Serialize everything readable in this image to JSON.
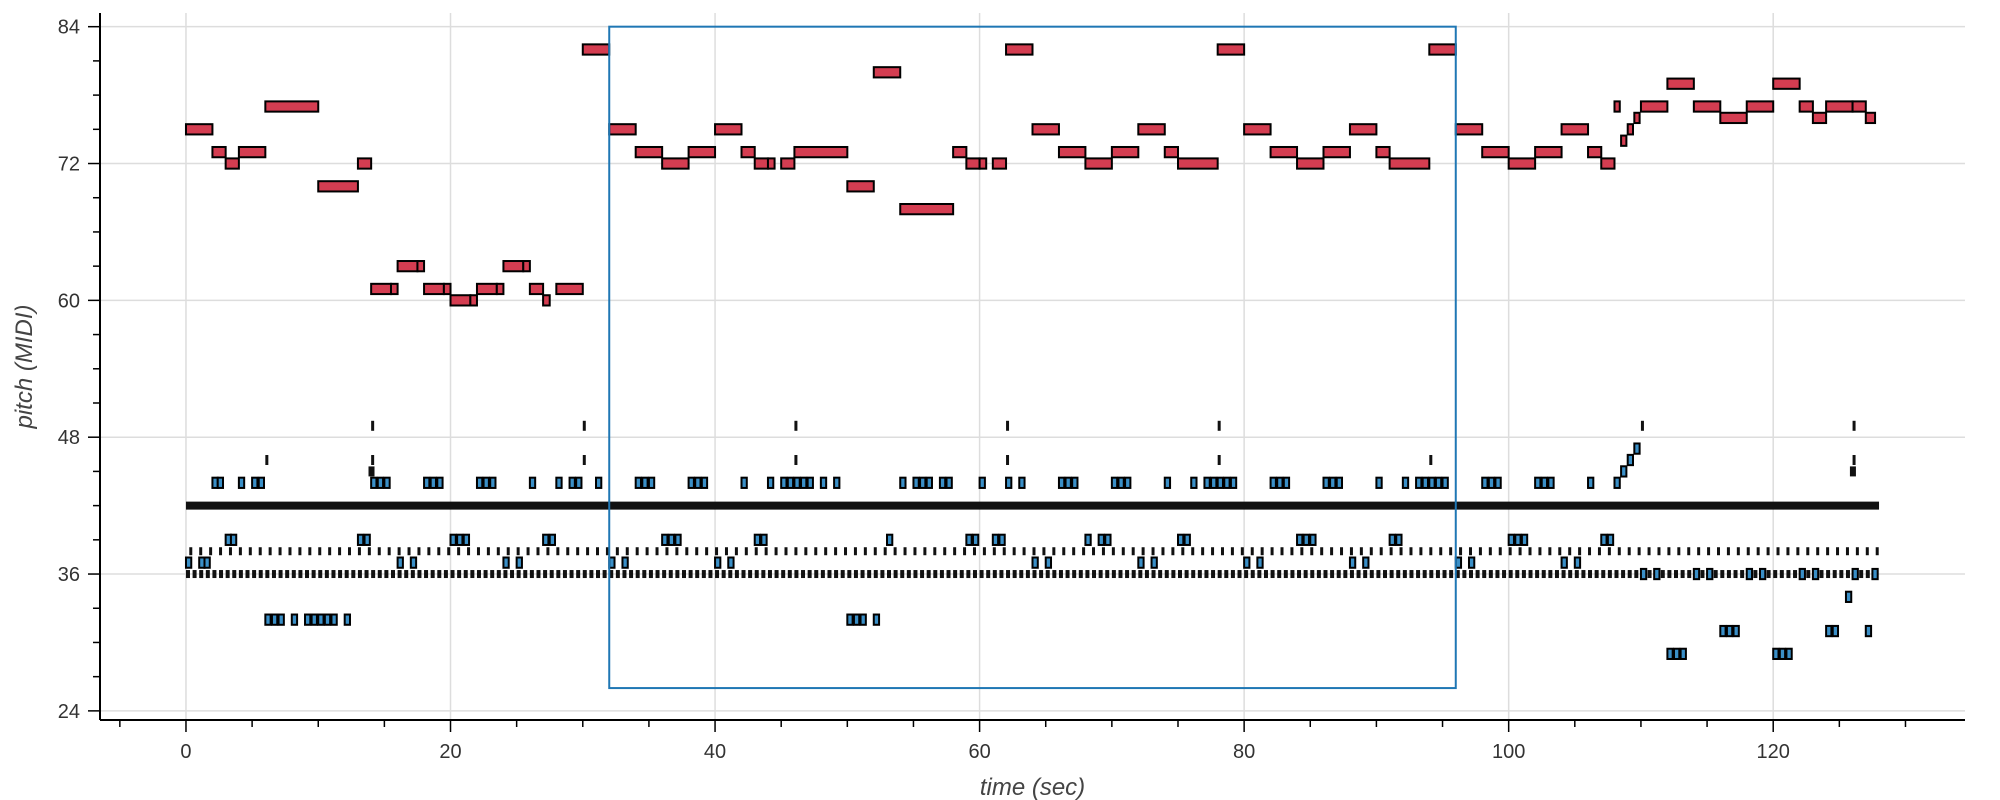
{
  "chart_data": {
    "type": "scatter",
    "xlabel": "time (sec)",
    "ylabel": "pitch (MIDI)",
    "xlim": [
      -6.5,
      134.5
    ],
    "ylim": [
      23.2,
      85.2
    ],
    "x_ticks": [
      0,
      20,
      40,
      60,
      80,
      100,
      120
    ],
    "y_ticks": [
      24,
      36,
      48,
      60,
      72,
      84
    ],
    "grid": true,
    "highlight_region": {
      "x": [
        32,
        96
      ],
      "y": [
        26,
        84
      ],
      "color": "#1f77b4"
    },
    "colors": {
      "melody": "#d43d51",
      "accompaniment": "#3a8fc7",
      "percussion": "#111111",
      "outline": "#000000"
    },
    "series": [
      {
        "color": "#d43d51",
        "notes": [
          [
            0,
            2,
            75
          ],
          [
            2,
            1,
            73
          ],
          [
            3,
            1,
            72
          ],
          [
            4,
            2,
            73
          ],
          [
            6,
            4,
            77
          ],
          [
            10,
            3,
            70
          ],
          [
            13,
            1,
            72
          ],
          [
            14,
            1.5,
            61
          ],
          [
            15.5,
            0.5,
            61
          ],
          [
            16,
            1.5,
            63
          ],
          [
            17.5,
            0.5,
            63
          ],
          [
            18,
            1.5,
            61
          ],
          [
            19.5,
            0.5,
            61
          ],
          [
            20,
            1.5,
            60
          ],
          [
            21.5,
            0.5,
            60
          ],
          [
            22,
            1.5,
            61
          ],
          [
            23.5,
            0.5,
            61
          ],
          [
            24,
            1.5,
            63
          ],
          [
            25.5,
            0.5,
            63
          ],
          [
            26,
            1,
            61
          ],
          [
            27,
            0.5,
            60
          ],
          [
            28,
            2,
            61
          ],
          [
            30,
            2,
            82
          ],
          [
            32,
            2,
            75
          ],
          [
            34,
            2,
            73
          ],
          [
            36,
            2,
            72
          ],
          [
            38,
            2,
            73
          ],
          [
            40,
            2,
            75
          ],
          [
            42,
            1,
            73
          ],
          [
            43,
            1,
            72
          ],
          [
            44,
            0.5,
            72
          ],
          [
            45,
            1,
            72
          ],
          [
            46,
            4,
            73
          ],
          [
            50,
            2,
            70
          ],
          [
            52,
            2,
            80
          ],
          [
            54,
            4,
            68
          ],
          [
            58,
            1,
            73
          ],
          [
            59,
            1,
            72
          ],
          [
            60,
            0.5,
            72
          ],
          [
            61,
            1,
            72
          ],
          [
            62,
            2,
            82
          ],
          [
            64,
            2,
            75
          ],
          [
            66,
            2,
            73
          ],
          [
            68,
            2,
            72
          ],
          [
            70,
            2,
            73
          ],
          [
            72,
            2,
            75
          ],
          [
            74,
            1,
            73
          ],
          [
            75,
            3,
            72
          ],
          [
            78,
            2,
            82
          ],
          [
            80,
            2,
            75
          ],
          [
            82,
            2,
            73
          ],
          [
            84,
            2,
            72
          ],
          [
            86,
            2,
            73
          ],
          [
            88,
            2,
            75
          ],
          [
            90,
            1,
            73
          ],
          [
            91,
            3,
            72
          ],
          [
            94,
            2,
            82
          ],
          [
            96,
            2,
            75
          ],
          [
            98,
            2,
            73
          ],
          [
            100,
            2,
            72
          ],
          [
            102,
            2,
            73
          ],
          [
            104,
            2,
            75
          ],
          [
            106,
            1,
            73
          ],
          [
            107,
            1,
            72
          ],
          [
            108,
            0.4,
            77
          ],
          [
            108.5,
            0.4,
            74
          ],
          [
            109,
            0.4,
            75
          ],
          [
            109.5,
            0.4,
            76
          ],
          [
            110,
            2,
            77
          ],
          [
            112,
            2,
            79
          ],
          [
            114,
            2,
            77
          ],
          [
            116,
            2,
            76
          ],
          [
            118,
            2,
            77
          ],
          [
            120,
            2,
            79
          ],
          [
            122,
            1,
            77
          ],
          [
            123,
            1,
            76
          ],
          [
            124,
            2,
            77
          ],
          [
            126,
            1,
            77
          ],
          [
            127,
            0.7,
            76
          ]
        ]
      },
      {
        "color": "#3a8fc7",
        "notes": [
          [
            0,
            0.4,
            37
          ],
          [
            1,
            0.4,
            37
          ],
          [
            1.4,
            0.4,
            37
          ],
          [
            2,
            0.4,
            44
          ],
          [
            2.4,
            0.4,
            44
          ],
          [
            3,
            0.4,
            39
          ],
          [
            3.4,
            0.4,
            39
          ],
          [
            4,
            0.4,
            44
          ],
          [
            5,
            0.4,
            44
          ],
          [
            5.5,
            0.4,
            44
          ],
          [
            6,
            0.4,
            32
          ],
          [
            6.5,
            0.4,
            32
          ],
          [
            7,
            0.4,
            32
          ],
          [
            8,
            0.4,
            32
          ],
          [
            9,
            0.4,
            32
          ],
          [
            9.5,
            0.4,
            32
          ],
          [
            10,
            0.4,
            32
          ],
          [
            10.5,
            0.4,
            32
          ],
          [
            11,
            0.4,
            32
          ],
          [
            12,
            0.4,
            32
          ],
          [
            13,
            0.4,
            39
          ],
          [
            13.5,
            0.4,
            39
          ],
          [
            14,
            0.4,
            44
          ],
          [
            14.5,
            0.4,
            44
          ],
          [
            15,
            0.4,
            44
          ],
          [
            16,
            0.4,
            37
          ],
          [
            17,
            0.4,
            37
          ],
          [
            18,
            0.4,
            44
          ],
          [
            18.5,
            0.4,
            44
          ],
          [
            19,
            0.4,
            44
          ],
          [
            20,
            0.4,
            39
          ],
          [
            20.5,
            0.4,
            39
          ],
          [
            21,
            0.4,
            39
          ],
          [
            22,
            0.4,
            44
          ],
          [
            22.5,
            0.4,
            44
          ],
          [
            23,
            0.4,
            44
          ],
          [
            24,
            0.4,
            37
          ],
          [
            25,
            0.4,
            37
          ],
          [
            26,
            0.4,
            44
          ],
          [
            27,
            0.4,
            39
          ],
          [
            27.5,
            0.4,
            39
          ],
          [
            28,
            0.4,
            44
          ],
          [
            29,
            0.4,
            44
          ],
          [
            29.5,
            0.4,
            44
          ],
          [
            31,
            0.4,
            44
          ],
          [
            32,
            0.4,
            37
          ],
          [
            33,
            0.4,
            37
          ],
          [
            34,
            0.4,
            44
          ],
          [
            34.5,
            0.4,
            44
          ],
          [
            35,
            0.4,
            44
          ],
          [
            36,
            0.4,
            39
          ],
          [
            36.5,
            0.4,
            39
          ],
          [
            37,
            0.4,
            39
          ],
          [
            38,
            0.4,
            44
          ],
          [
            38.5,
            0.4,
            44
          ],
          [
            39,
            0.4,
            44
          ],
          [
            40,
            0.4,
            37
          ],
          [
            41,
            0.4,
            37
          ],
          [
            42,
            0.4,
            44
          ],
          [
            43,
            0.4,
            39
          ],
          [
            43.5,
            0.4,
            39
          ],
          [
            44,
            0.4,
            44
          ],
          [
            45,
            0.4,
            44
          ],
          [
            45.5,
            0.4,
            44
          ],
          [
            46,
            0.4,
            44
          ],
          [
            46.5,
            0.4,
            44
          ],
          [
            47,
            0.4,
            44
          ],
          [
            48,
            0.4,
            44
          ],
          [
            49,
            0.4,
            44
          ],
          [
            50,
            0.4,
            32
          ],
          [
            50.5,
            0.4,
            32
          ],
          [
            51,
            0.4,
            32
          ],
          [
            52,
            0.4,
            32
          ],
          [
            53,
            0.4,
            39
          ],
          [
            54,
            0.4,
            44
          ],
          [
            55,
            0.4,
            44
          ],
          [
            55.5,
            0.4,
            44
          ],
          [
            56,
            0.4,
            44
          ],
          [
            57,
            0.4,
            44
          ],
          [
            57.5,
            0.4,
            44
          ],
          [
            59,
            0.4,
            39
          ],
          [
            59.5,
            0.4,
            39
          ],
          [
            60,
            0.4,
            44
          ],
          [
            61,
            0.4,
            39
          ],
          [
            61.5,
            0.4,
            39
          ],
          [
            62,
            0.4,
            44
          ],
          [
            63,
            0.4,
            44
          ],
          [
            64,
            0.4,
            37
          ],
          [
            65,
            0.4,
            37
          ],
          [
            66,
            0.4,
            44
          ],
          [
            66.5,
            0.4,
            44
          ],
          [
            67,
            0.4,
            44
          ],
          [
            68,
            0.4,
            39
          ],
          [
            69,
            0.4,
            39
          ],
          [
            69.5,
            0.4,
            39
          ],
          [
            70,
            0.4,
            44
          ],
          [
            70.5,
            0.4,
            44
          ],
          [
            71,
            0.4,
            44
          ],
          [
            72,
            0.4,
            37
          ],
          [
            73,
            0.4,
            37
          ],
          [
            74,
            0.4,
            44
          ],
          [
            75,
            0.4,
            39
          ],
          [
            75.5,
            0.4,
            39
          ],
          [
            76,
            0.4,
            44
          ],
          [
            77,
            0.4,
            44
          ],
          [
            77.5,
            0.4,
            44
          ],
          [
            78,
            0.4,
            44
          ],
          [
            78.5,
            0.4,
            44
          ],
          [
            79,
            0.4,
            44
          ],
          [
            80,
            0.4,
            37
          ],
          [
            81,
            0.4,
            37
          ],
          [
            82,
            0.4,
            44
          ],
          [
            82.5,
            0.4,
            44
          ],
          [
            83,
            0.4,
            44
          ],
          [
            84,
            0.4,
            39
          ],
          [
            84.5,
            0.4,
            39
          ],
          [
            85,
            0.4,
            39
          ],
          [
            86,
            0.4,
            44
          ],
          [
            86.5,
            0.4,
            44
          ],
          [
            87,
            0.4,
            44
          ],
          [
            88,
            0.4,
            37
          ],
          [
            89,
            0.4,
            37
          ],
          [
            90,
            0.4,
            44
          ],
          [
            91,
            0.4,
            39
          ],
          [
            91.5,
            0.4,
            39
          ],
          [
            92,
            0.4,
            44
          ],
          [
            93,
            0.4,
            44
          ],
          [
            93.5,
            0.4,
            44
          ],
          [
            94,
            0.4,
            44
          ],
          [
            94.5,
            0.4,
            44
          ],
          [
            95,
            0.4,
            44
          ],
          [
            96,
            0.4,
            37
          ],
          [
            97,
            0.4,
            37
          ],
          [
            98,
            0.4,
            44
          ],
          [
            98.5,
            0.4,
            44
          ],
          [
            99,
            0.4,
            44
          ],
          [
            100,
            0.4,
            39
          ],
          [
            100.5,
            0.4,
            39
          ],
          [
            101,
            0.4,
            39
          ],
          [
            102,
            0.4,
            44
          ],
          [
            102.5,
            0.4,
            44
          ],
          [
            103,
            0.4,
            44
          ],
          [
            104,
            0.4,
            37
          ],
          [
            105,
            0.4,
            37
          ],
          [
            106,
            0.4,
            44
          ],
          [
            107,
            0.4,
            39
          ],
          [
            107.5,
            0.4,
            39
          ],
          [
            108,
            0.4,
            44
          ],
          [
            108.5,
            0.4,
            45
          ],
          [
            109,
            0.4,
            46
          ],
          [
            109.5,
            0.4,
            47
          ],
          [
            110,
            0.4,
            36
          ],
          [
            111,
            0.4,
            36
          ],
          [
            112,
            0.4,
            29
          ],
          [
            112.5,
            0.4,
            29
          ],
          [
            113,
            0.4,
            29
          ],
          [
            114,
            0.4,
            36
          ],
          [
            115,
            0.4,
            36
          ],
          [
            116,
            0.4,
            31
          ],
          [
            116.5,
            0.4,
            31
          ],
          [
            117,
            0.4,
            31
          ],
          [
            118,
            0.4,
            36
          ],
          [
            119,
            0.4,
            36
          ],
          [
            120,
            0.4,
            29
          ],
          [
            120.5,
            0.4,
            29
          ],
          [
            121,
            0.4,
            29
          ],
          [
            122,
            0.4,
            36
          ],
          [
            123,
            0.4,
            36
          ],
          [
            124,
            0.4,
            31
          ],
          [
            124.5,
            0.4,
            31
          ],
          [
            125.5,
            0.4,
            34
          ],
          [
            126,
            0.4,
            36
          ],
          [
            127,
            0.4,
            31
          ],
          [
            127.5,
            0.4,
            36
          ]
        ]
      }
    ]
  }
}
